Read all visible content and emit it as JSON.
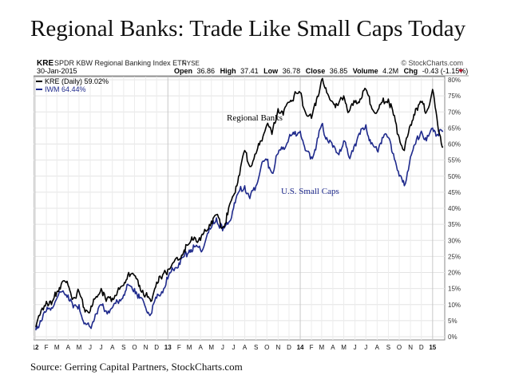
{
  "page": {
    "title": "Regional Banks: Trade Like Small Caps Today",
    "source": "Source: Gerring Capital Partners, StockCharts.com"
  },
  "header": {
    "symbol": "KRE",
    "fund_name": "SPDR KBW Regional Banking Index ETF",
    "exchange": "NYSE",
    "brand": "© StockCharts.com",
    "date": "30-Jan-2015",
    "quote": {
      "open_label": "Open",
      "open": "36.86",
      "high_label": "High",
      "high": "37.41",
      "low_label": "Low",
      "low": "36.78",
      "close_label": "Close",
      "close": "36.85",
      "volume_label": "Volume",
      "volume": "4.2M",
      "chg_label": "Chg",
      "chg": "-0.43 (-1.15%)"
    }
  },
  "chart_data": {
    "type": "line",
    "title": "Regional Banks: Trade Like Small Caps Today",
    "x_range": [
      "2012-01",
      "2015-01-30"
    ],
    "ylim": [
      0,
      80
    ],
    "y_unit": "%",
    "y_ticks": [
      0,
      5,
      10,
      15,
      20,
      25,
      30,
      35,
      40,
      45,
      50,
      55,
      60,
      65,
      70,
      75,
      80
    ],
    "y_tick_labels": [
      "0%",
      "5%",
      "10%",
      "15%",
      "20%",
      "25%",
      "30%",
      "35%",
      "40%",
      "45%",
      "50%",
      "55%",
      "60%",
      "65%",
      "70%",
      "75%",
      "80%"
    ],
    "x_tick_labels": [
      "12",
      "F",
      "M",
      "A",
      "M",
      "J",
      "J",
      "A",
      "S",
      "O",
      "N",
      "D",
      "13",
      "F",
      "M",
      "A",
      "M",
      "J",
      "J",
      "A",
      "S",
      "O",
      "N",
      "D",
      "14",
      "F",
      "M",
      "A",
      "M",
      "J",
      "J",
      "A",
      "S",
      "O",
      "N",
      "D",
      "15"
    ],
    "grid": true,
    "legend_position": "top-left",
    "annotations": [
      "Regional Banks",
      "U.S. Small Caps"
    ],
    "series": [
      {
        "name": "KRE (Daily) 59.02%",
        "color": "#000000",
        "x": [
          "2012-01-03",
          "2012-01-15",
          "2012-02-01",
          "2012-02-15",
          "2012-03-01",
          "2012-03-15",
          "2012-04-01",
          "2012-04-15",
          "2012-05-01",
          "2012-05-15",
          "2012-06-01",
          "2012-06-15",
          "2012-07-01",
          "2012-07-15",
          "2012-08-01",
          "2012-08-15",
          "2012-09-01",
          "2012-09-15",
          "2012-10-01",
          "2012-10-15",
          "2012-11-01",
          "2012-11-15",
          "2012-12-01",
          "2012-12-15",
          "2013-01-01",
          "2013-01-15",
          "2013-02-01",
          "2013-02-15",
          "2013-03-01",
          "2013-03-15",
          "2013-04-01",
          "2013-04-15",
          "2013-05-01",
          "2013-05-15",
          "2013-06-01",
          "2013-06-15",
          "2013-07-01",
          "2013-07-15",
          "2013-08-01",
          "2013-08-15",
          "2013-09-01",
          "2013-09-15",
          "2013-10-01",
          "2013-10-15",
          "2013-11-01",
          "2013-11-15",
          "2013-12-01",
          "2013-12-15",
          "2014-01-01",
          "2014-01-15",
          "2014-02-01",
          "2014-02-15",
          "2014-03-01",
          "2014-03-15",
          "2014-04-01",
          "2014-04-15",
          "2014-05-01",
          "2014-05-15",
          "2014-06-01",
          "2014-06-15",
          "2014-07-01",
          "2014-07-15",
          "2014-08-01",
          "2014-08-15",
          "2014-09-01",
          "2014-09-15",
          "2014-10-01",
          "2014-10-15",
          "2014-11-01",
          "2014-11-15",
          "2014-12-01",
          "2014-12-15",
          "2015-01-01",
          "2015-01-15",
          "2015-01-30"
        ],
        "values": [
          3,
          7,
          11,
          10,
          14,
          17,
          16,
          12,
          14,
          9,
          8,
          12,
          15,
          11,
          12,
          14,
          16,
          20,
          19,
          16,
          13,
          11,
          17,
          18,
          21,
          23,
          24,
          27,
          29,
          31,
          30,
          33,
          36,
          38,
          34,
          38,
          44,
          50,
          58,
          53,
          57,
          61,
          66,
          63,
          71,
          69,
          73,
          75,
          76,
          70,
          68,
          74,
          80,
          76,
          73,
          72,
          75,
          70,
          73,
          74,
          77,
          72,
          70,
          73,
          74,
          69,
          62,
          58,
          66,
          71,
          73,
          70,
          77,
          66,
          59
        ]
      },
      {
        "name": "IWM 64.44%",
        "color": "#1f2a8c",
        "x": [
          "2012-01-03",
          "2012-01-15",
          "2012-02-01",
          "2012-02-15",
          "2012-03-01",
          "2012-03-15",
          "2012-04-01",
          "2012-04-15",
          "2012-05-01",
          "2012-05-15",
          "2012-06-01",
          "2012-06-15",
          "2012-07-01",
          "2012-07-15",
          "2012-08-01",
          "2012-08-15",
          "2012-09-01",
          "2012-09-15",
          "2012-10-01",
          "2012-10-15",
          "2012-11-01",
          "2012-11-15",
          "2012-12-01",
          "2012-12-15",
          "2013-01-01",
          "2013-01-15",
          "2013-02-01",
          "2013-02-15",
          "2013-03-01",
          "2013-03-15",
          "2013-04-01",
          "2013-04-15",
          "2013-05-01",
          "2013-05-15",
          "2013-06-01",
          "2013-06-15",
          "2013-07-01",
          "2013-07-15",
          "2013-08-01",
          "2013-08-15",
          "2013-09-01",
          "2013-09-15",
          "2013-10-01",
          "2013-10-15",
          "2013-11-01",
          "2013-11-15",
          "2013-12-01",
          "2013-12-15",
          "2014-01-01",
          "2014-01-15",
          "2014-02-01",
          "2014-02-15",
          "2014-03-01",
          "2014-03-15",
          "2014-04-01",
          "2014-04-15",
          "2014-05-01",
          "2014-05-15",
          "2014-06-01",
          "2014-06-15",
          "2014-07-01",
          "2014-07-15",
          "2014-08-01",
          "2014-08-15",
          "2014-09-01",
          "2014-09-15",
          "2014-10-01",
          "2014-10-15",
          "2014-11-01",
          "2014-11-15",
          "2014-12-01",
          "2014-12-15",
          "2015-01-01",
          "2015-01-15",
          "2015-01-30"
        ],
        "values": [
          2,
          5,
          8,
          9,
          12,
          14,
          13,
          9,
          10,
          4,
          3,
          7,
          10,
          8,
          9,
          11,
          13,
          16,
          15,
          12,
          9,
          7,
          12,
          14,
          18,
          21,
          23,
          25,
          27,
          28,
          27,
          30,
          34,
          37,
          33,
          35,
          40,
          45,
          47,
          43,
          47,
          53,
          55,
          51,
          57,
          59,
          62,
          63,
          64,
          58,
          56,
          60,
          66,
          62,
          59,
          57,
          61,
          56,
          60,
          63,
          66,
          60,
          58,
          62,
          62,
          57,
          50,
          47,
          56,
          60,
          64,
          61,
          65,
          63,
          64
        ]
      }
    ]
  }
}
